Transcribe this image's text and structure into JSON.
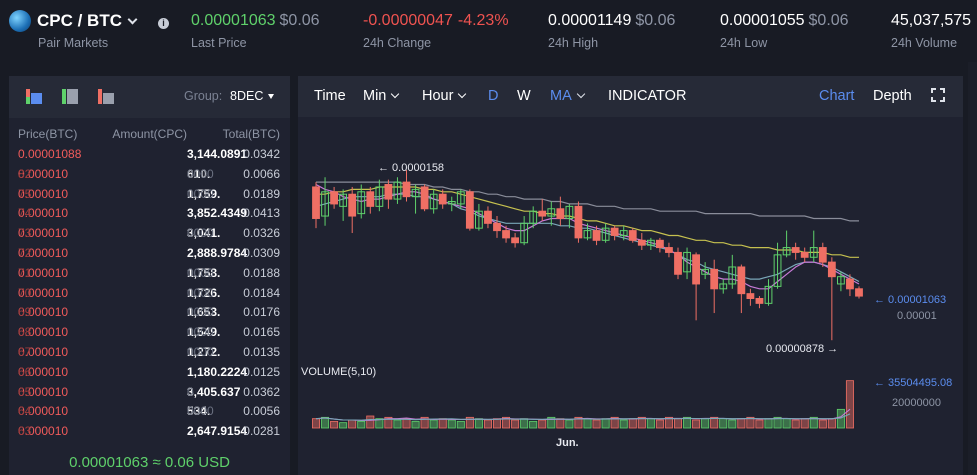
{
  "pair": {
    "name": "CPC / BTC",
    "sub": "Pair Markets"
  },
  "stats": {
    "last_price": {
      "value": "0.00001063",
      "usd": "$0.06",
      "label": "Last Price"
    },
    "change_24h": {
      "value": "-0.00000047",
      "pct": "-4.23%",
      "label": "24h Change"
    },
    "high_24h": {
      "value": "0.00001149",
      "usd": "$0.06",
      "label": "24h High"
    },
    "low_24h": {
      "value": "0.00001055",
      "usd": "$0.06",
      "label": "24h Low"
    },
    "volume_24h": {
      "value": "45,037,575",
      "label": "24h Volume"
    }
  },
  "orderbook": {
    "group_label": "Group:",
    "group_value": "8DEC",
    "headers": {
      "price": "Price(BTC)",
      "amount": "Amount(CPC)",
      "total": "Total(BTC)"
    },
    "rows": [
      {
        "pb": "0.00001088",
        "ps": "",
        "ab": "3,144.0891",
        "as": "",
        "total": "0.0342"
      },
      {
        "pb": "0.000010",
        "ps": "82",
        "ab": "610.",
        "as": "0000",
        "total": "0.0066"
      },
      {
        "pb": "0.000010",
        "ps": "75",
        "ab": "1,759.",
        "as": "0000",
        "total": "0.0189"
      },
      {
        "pb": "0.000010",
        "ps": "74",
        "ab": "3,852.4349",
        "as": "",
        "total": "0.0413"
      },
      {
        "pb": "0.000010",
        "ps": "73",
        "ab": "3,041.",
        "as": "0000",
        "total": "0.0326"
      },
      {
        "pb": "0.000010",
        "ps": "72",
        "ab": "2,888.9784",
        "as": "",
        "total": "0.0309"
      },
      {
        "pb": "0.000010",
        "ps": "71",
        "ab": "1,758.",
        "as": "0000",
        "total": "0.0188"
      },
      {
        "pb": "0.000010",
        "ps": "70",
        "ab": "1,726.",
        "as": "0000",
        "total": "0.0184"
      },
      {
        "pb": "0.000010",
        "ps": "69",
        "ab": "1,653.",
        "as": "0000",
        "total": "0.0176"
      },
      {
        "pb": "0.000010",
        "ps": "68",
        "ab": "1,549.",
        "as": "0000",
        "total": "0.0165"
      },
      {
        "pb": "0.000010",
        "ps": "67",
        "ab": "1,272.",
        "as": "0000",
        "total": "0.0135"
      },
      {
        "pb": "0.000010",
        "ps": "66",
        "ab": "1,180.2224",
        "as": "",
        "total": "0.0125"
      },
      {
        "pb": "0.000010",
        "ps": "65",
        "ab": "3,405.637",
        "as": "0",
        "total": "0.0362"
      },
      {
        "pb": "0.000010",
        "ps": "64",
        "ab": "534.",
        "as": "0000",
        "total": "0.0056"
      },
      {
        "pb": "0.000010",
        "ps": "63",
        "ab": "2,647.9154",
        "as": "",
        "total": "0.0281"
      }
    ],
    "last_price_line": "0.00001063 ≈ 0.06 USD"
  },
  "chart_toolbar": {
    "time": "Time",
    "min": "Min",
    "hour": "Hour",
    "d": "D",
    "w": "W",
    "ma": "MA",
    "indicator": "INDICATOR",
    "chart": "Chart",
    "depth": "Depth"
  },
  "chart_labels": {
    "max_label": "← 0.0000158",
    "min_label": "0.00000878 →",
    "last_label": "← 0.00001063",
    "axis_tick": "0.00001",
    "volume_title": "VOLUME(5,10)",
    "vol_last_label": "← 35504495.08",
    "vol_tick": "20000000",
    "x_tick": "Jun."
  },
  "colors": {
    "up": "#5fd16b",
    "down": "#ef6f64",
    "accent": "#5b8def",
    "ma_short": "#c67ad6",
    "ma_mid": "#7aa7b8",
    "ma_long": "#c6c14f",
    "ma_xlong": "#8a8d9a"
  },
  "chart_data": {
    "type": "candlestick",
    "y_unit": "BTC",
    "ylim": [
      8.5e-06,
      1.65e-05
    ],
    "candles": [
      {
        "o": 15.1,
        "c": 13.8,
        "h": 15.3,
        "l": 13.4
      },
      {
        "o": 13.9,
        "c": 14.9,
        "h": 15.5,
        "l": 13.5
      },
      {
        "o": 14.9,
        "c": 14.4,
        "h": 15.1,
        "l": 14.2
      },
      {
        "o": 14.3,
        "c": 14.8,
        "h": 15.0,
        "l": 13.7
      },
      {
        "o": 14.8,
        "c": 13.9,
        "h": 15.1,
        "l": 13.2
      },
      {
        "o": 14.0,
        "c": 14.9,
        "h": 15.2,
        "l": 13.8
      },
      {
        "o": 14.9,
        "c": 14.3,
        "h": 15.1,
        "l": 14.0
      },
      {
        "o": 14.3,
        "c": 15.1,
        "h": 15.4,
        "l": 14.1
      },
      {
        "o": 15.2,
        "c": 14.6,
        "h": 15.4,
        "l": 14.2
      },
      {
        "o": 14.6,
        "c": 15.3,
        "h": 15.5,
        "l": 14.4
      },
      {
        "o": 15.3,
        "c": 14.7,
        "h": 15.8,
        "l": 14.5
      },
      {
        "o": 14.7,
        "c": 15.0,
        "h": 15.2,
        "l": 14.0
      },
      {
        "o": 15.1,
        "c": 14.2,
        "h": 15.2,
        "l": 14.1
      },
      {
        "o": 14.2,
        "c": 14.8,
        "h": 15.0,
        "l": 14.0
      },
      {
        "o": 14.8,
        "c": 14.4,
        "h": 15.0,
        "l": 14.2
      },
      {
        "o": 14.4,
        "c": 14.5,
        "h": 14.7,
        "l": 14.1
      },
      {
        "o": 14.4,
        "c": 14.9,
        "h": 15.0,
        "l": 14.2
      },
      {
        "o": 14.9,
        "c": 13.4,
        "h": 15.0,
        "l": 13.3
      },
      {
        "o": 13.4,
        "c": 14.1,
        "h": 14.4,
        "l": 13.3
      },
      {
        "o": 14.1,
        "c": 13.6,
        "h": 14.3,
        "l": 13.4
      },
      {
        "o": 13.6,
        "c": 13.3,
        "h": 13.9,
        "l": 13.0
      },
      {
        "o": 13.3,
        "c": 13.0,
        "h": 13.5,
        "l": 12.8
      },
      {
        "o": 13.0,
        "c": 12.8,
        "h": 13.2,
        "l": 12.6
      },
      {
        "o": 12.8,
        "c": 13.6,
        "h": 13.9,
        "l": 12.7
      },
      {
        "o": 13.6,
        "c": 14.1,
        "h": 14.3,
        "l": 13.4
      },
      {
        "o": 14.1,
        "c": 13.9,
        "h": 14.6,
        "l": 13.7
      },
      {
        "o": 13.9,
        "c": 14.2,
        "h": 14.5,
        "l": 13.5
      },
      {
        "o": 14.2,
        "c": 13.8,
        "h": 14.7,
        "l": 13.5
      },
      {
        "o": 13.8,
        "c": 14.3,
        "h": 14.4,
        "l": 13.4
      },
      {
        "o": 14.3,
        "c": 13.0,
        "h": 14.5,
        "l": 12.8
      },
      {
        "o": 13.0,
        "c": 13.3,
        "h": 13.6,
        "l": 12.9
      },
      {
        "o": 13.3,
        "c": 12.9,
        "h": 13.5,
        "l": 12.7
      },
      {
        "o": 12.9,
        "c": 13.4,
        "h": 13.6,
        "l": 12.8
      },
      {
        "o": 13.4,
        "c": 13.1,
        "h": 13.5,
        "l": 12.9
      },
      {
        "o": 13.1,
        "c": 13.3,
        "h": 13.5,
        "l": 12.9
      },
      {
        "o": 13.3,
        "c": 12.9,
        "h": 13.4,
        "l": 12.8
      },
      {
        "o": 12.9,
        "c": 12.7,
        "h": 13.2,
        "l": 12.5
      },
      {
        "o": 12.7,
        "c": 12.9,
        "h": 13.0,
        "l": 12.5
      },
      {
        "o": 12.9,
        "c": 12.6,
        "h": 13.0,
        "l": 12.4
      },
      {
        "o": 12.6,
        "c": 12.4,
        "h": 12.8,
        "l": 12.2
      },
      {
        "o": 12.4,
        "c": 11.5,
        "h": 12.6,
        "l": 11.3
      },
      {
        "o": 11.6,
        "c": 12.4,
        "h": 12.6,
        "l": 11.3
      },
      {
        "o": 12.3,
        "c": 11.1,
        "h": 12.4,
        "l": 9.6
      },
      {
        "o": 11.5,
        "c": 11.7,
        "h": 12.0,
        "l": 11.3
      },
      {
        "o": 11.7,
        "c": 10.9,
        "h": 12.1,
        "l": 9.9
      },
      {
        "o": 10.9,
        "c": 11.1,
        "h": 11.3,
        "l": 10.7
      },
      {
        "o": 11.1,
        "c": 11.8,
        "h": 12.3,
        "l": 10.9
      },
      {
        "o": 11.8,
        "c": 10.7,
        "h": 11.9,
        "l": 9.9
      },
      {
        "o": 10.7,
        "c": 10.5,
        "h": 10.9,
        "l": 10.2
      },
      {
        "o": 10.5,
        "c": 10.3,
        "h": 10.6,
        "l": 10.1
      },
      {
        "o": 10.3,
        "c": 11.0,
        "h": 11.3,
        "l": 10.2
      },
      {
        "o": 11.0,
        "c": 12.3,
        "h": 12.8,
        "l": 10.9
      },
      {
        "o": 12.3,
        "c": 12.6,
        "h": 13.3,
        "l": 12.2
      },
      {
        "o": 12.6,
        "c": 12.4,
        "h": 12.8,
        "l": 12.1
      },
      {
        "o": 12.4,
        "c": 12.2,
        "h": 12.6,
        "l": 12.0
      },
      {
        "o": 12.2,
        "c": 12.6,
        "h": 13.3,
        "l": 12.0
      },
      {
        "o": 12.6,
        "c": 12.0,
        "h": 12.8,
        "l": 11.8
      },
      {
        "o": 12.0,
        "c": 11.4,
        "h": 12.2,
        "l": 8.78
      },
      {
        "o": 11.1,
        "c": 11.4,
        "h": 11.6,
        "l": 10.8
      },
      {
        "o": 11.3,
        "c": 10.9,
        "h": 11.5,
        "l": 10.6
      },
      {
        "o": 10.9,
        "c": 10.6,
        "h": 11.0,
        "l": 10.5
      }
    ],
    "ma_short": [
      15.2,
      15.0,
      14.9,
      14.7,
      14.6,
      14.5,
      14.6,
      14.6,
      14.7,
      14.8,
      14.9,
      14.9,
      14.8,
      14.6,
      14.5,
      14.4,
      14.3,
      14.2,
      14.0,
      13.8,
      13.6,
      13.4,
      13.3,
      13.3,
      13.5,
      13.7,
      13.8,
      13.8,
      13.8,
      13.6,
      13.5,
      13.4,
      13.3,
      13.2,
      13.1,
      13.0,
      12.9,
      12.8,
      12.7,
      12.5,
      12.3,
      12.0,
      11.8,
      11.6,
      11.4,
      11.3,
      11.3,
      11.2,
      11.0,
      10.9,
      10.9,
      11.2,
      11.5,
      11.8,
      12.0,
      12.0,
      11.9,
      11.7,
      11.5,
      11.3,
      11.1
    ],
    "ma_mid": [
      14.3,
      14.4,
      14.5,
      14.6,
      14.7,
      14.7,
      14.7,
      14.7,
      14.8,
      14.8,
      14.8,
      14.7,
      14.7,
      14.6,
      14.5,
      14.4,
      14.2,
      14.1,
      13.9,
      13.8,
      13.7,
      13.6,
      13.6,
      13.6,
      13.6,
      13.6,
      13.6,
      13.5,
      13.5,
      13.4,
      13.4,
      13.3,
      13.2,
      13.1,
      13.0,
      12.9,
      12.8,
      12.7,
      12.6,
      12.5,
      12.3,
      12.1,
      12.0,
      11.8,
      11.7,
      11.6,
      11.5,
      11.4,
      11.3,
      11.3,
      11.4,
      11.5,
      11.7,
      11.9,
      12.0,
      12.0,
      11.9,
      11.8,
      11.6,
      11.4,
      11.2
    ],
    "ma_long": [
      14.8,
      14.8,
      14.9,
      14.9,
      15.0,
      15.0,
      15.0,
      15.1,
      15.1,
      15.1,
      15.1,
      15.1,
      15.0,
      15.0,
      14.9,
      14.9,
      14.8,
      14.7,
      14.6,
      14.5,
      14.4,
      14.3,
      14.2,
      14.1,
      14.1,
      14.0,
      14.0,
      13.9,
      13.9,
      13.8,
      13.7,
      13.7,
      13.6,
      13.5,
      13.5,
      13.4,
      13.3,
      13.3,
      13.2,
      13.1,
      13.1,
      13.0,
      12.9,
      12.9,
      12.8,
      12.8,
      12.7,
      12.7,
      12.6,
      12.6,
      12.6,
      12.5,
      12.5,
      12.5,
      12.4,
      12.4,
      12.4,
      12.3,
      12.3,
      12.2,
      12.2
    ],
    "ma_xlong": [
      15.3,
      15.3,
      15.3,
      15.3,
      15.3,
      15.3,
      15.3,
      15.3,
      15.3,
      15.3,
      15.2,
      15.2,
      15.2,
      15.1,
      15.1,
      15.0,
      15.0,
      14.9,
      14.9,
      14.8,
      14.8,
      14.7,
      14.7,
      14.6,
      14.6,
      14.6,
      14.5,
      14.5,
      14.4,
      14.4,
      14.4,
      14.3,
      14.3,
      14.3,
      14.2,
      14.2,
      14.2,
      14.2,
      14.1,
      14.1,
      14.1,
      14.1,
      14.1,
      14.0,
      14.0,
      14.0,
      14.0,
      14.0,
      14.0,
      13.9,
      13.9,
      13.9,
      13.9,
      13.9,
      13.9,
      13.8,
      13.8,
      13.8,
      13.8,
      13.7,
      13.7
    ],
    "volume": [
      7,
      8,
      5,
      4,
      6,
      5,
      9,
      7,
      8,
      6,
      7,
      5,
      8,
      6,
      7,
      6,
      5,
      8,
      7,
      6,
      7,
      8,
      6,
      7,
      5,
      6,
      8,
      7,
      6,
      8,
      7,
      6,
      7,
      8,
      6,
      7,
      8,
      7,
      6,
      8,
      7,
      8,
      6,
      7,
      8,
      7,
      6,
      7,
      8,
      6,
      7,
      8,
      7,
      6,
      7,
      8,
      6,
      7,
      14,
      35.5
    ],
    "volume_ylim": [
      0,
      36
    ]
  }
}
